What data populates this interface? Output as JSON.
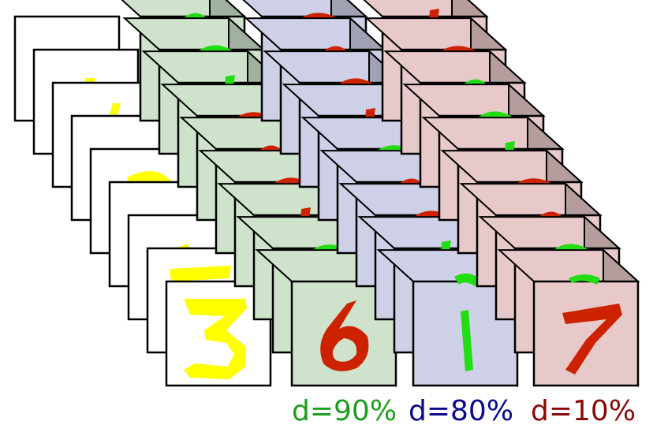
{
  "figure": {
    "description_digits": {
      "plain": "3",
      "stack1": "6",
      "stack2": "1",
      "stack3": "7"
    },
    "colors": {
      "plain_bg": "#ffffff",
      "plain_digit": "#ffff00",
      "stack1_bg": "#cfe3cc",
      "stack2_bg": "#cdd0e6",
      "stack3_bg": "#e8c9c9",
      "digit_red": "#cc2200",
      "digit_green": "#22dd11",
      "outline": "#000000"
    },
    "stacks": [
      {
        "label": "d=90%",
        "label_color": "#1e9e1e"
      },
      {
        "label": "d=80%",
        "label_color": "#0a0a8a"
      },
      {
        "label": "d=10%",
        "label_color": "#8a0a0a"
      }
    ]
  }
}
